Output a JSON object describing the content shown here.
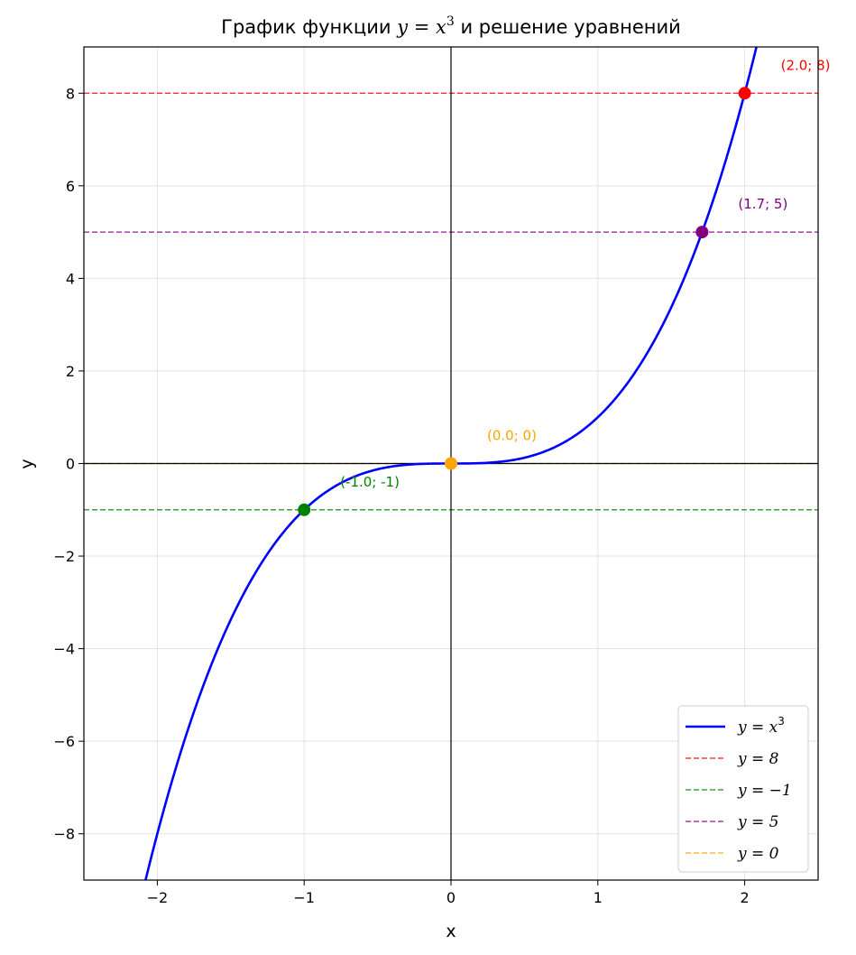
{
  "chart_data": {
    "type": "line",
    "title_prefix": "График функции ",
    "title_math_base": "y = x",
    "title_math_sup": "3",
    "title_suffix": " и решение уравнений",
    "xlabel": "x",
    "ylabel": "y",
    "xlim": [
      -2.5,
      2.5
    ],
    "ylim": [
      -9,
      9
    ],
    "xticks": [
      -2,
      -1,
      0,
      1,
      2
    ],
    "yticks": [
      -8,
      -6,
      -4,
      -2,
      0,
      2,
      4,
      6,
      8
    ],
    "grid": true,
    "legend_position": "bottom-right",
    "curve": {
      "function": "x^3",
      "color": "#0000ff",
      "legend_base": "y = x",
      "legend_sup": "3"
    },
    "horizontal_lines": [
      {
        "y": 8,
        "color": "#ff0000",
        "legend": "y = 8"
      },
      {
        "y": -1,
        "color": "#008000",
        "legend": "y = −1"
      },
      {
        "y": 5,
        "color": "#800080",
        "legend": "y = 5"
      },
      {
        "y": 0,
        "color": "#ffa500",
        "legend": "y = 0"
      }
    ],
    "points": [
      {
        "x": 2.0,
        "y": 8,
        "color": "#ff0000",
        "label": "(2.0; 8)"
      },
      {
        "x": -1.0,
        "y": -1,
        "color": "#008000",
        "label": "(-1.0; -1)"
      },
      {
        "x": 1.71,
        "y": 5,
        "color": "#800080",
        "label": "(1.7; 5)"
      },
      {
        "x": 0.0,
        "y": 0,
        "color": "#ffa500",
        "label": "(0.0; 0)"
      }
    ]
  }
}
